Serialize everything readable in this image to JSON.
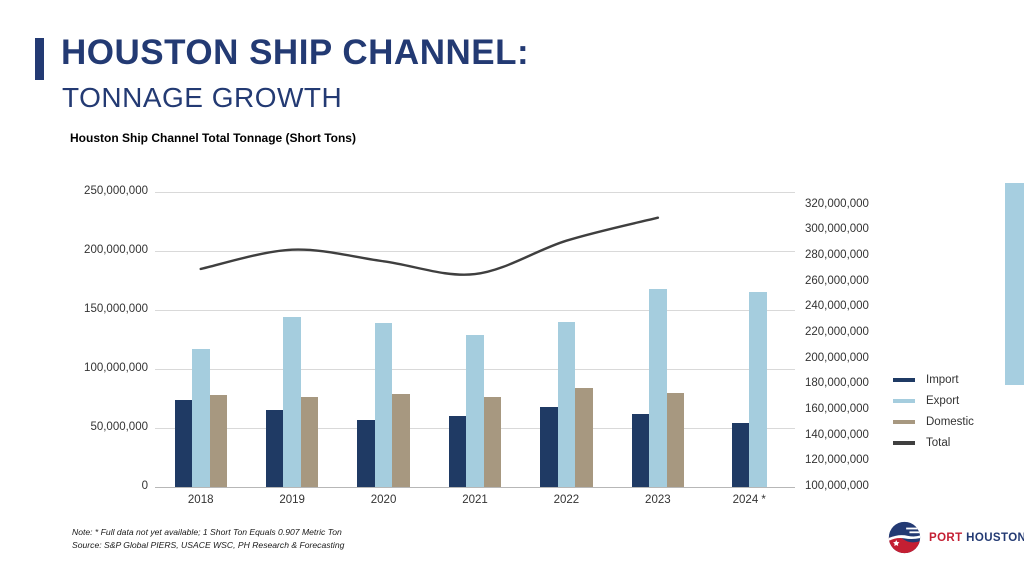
{
  "slide": {
    "title": "HOUSTON SHIP CHANNEL:",
    "subtitle": "TONNAGE GROWTH",
    "note_line1": "Note:  * Full data not yet available; 1 Short Ton Equals 0.907 Metric Ton",
    "note_line2": "Source:  S&P Global PIERS, USACE WSC, PH Research & Forecasting",
    "logo": {
      "word1": "PORT",
      "word2": "HOUSTON",
      "reg": "®"
    },
    "accent_color": "#233a73",
    "decor_color": "#a6cee0"
  },
  "chart_data": {
    "type": "bar",
    "subtype": "grouped bars with smoothed line on secondary axis",
    "title": "Houston Ship Channel Total Tonnage (Short Tons)",
    "categories": [
      "2018",
      "2019",
      "2020",
      "2021",
      "2022",
      "2023",
      "2024 *"
    ],
    "series": [
      {
        "name": "Import",
        "type": "bar",
        "axis": "left",
        "color": "#1f3a64",
        "values": [
          74000000,
          65000000,
          57000000,
          60000000,
          68000000,
          62000000,
          54000000
        ]
      },
      {
        "name": "Export",
        "type": "bar",
        "axis": "left",
        "color": "#a5cdde",
        "values": [
          117000000,
          144000000,
          139000000,
          129000000,
          140000000,
          168000000,
          165000000
        ]
      },
      {
        "name": "Domestic",
        "type": "bar",
        "axis": "left",
        "color": "#a79880",
        "values": [
          78000000,
          76000000,
          79000000,
          76000000,
          84000000,
          80000000,
          null
        ]
      },
      {
        "name": "Total",
        "type": "line",
        "axis": "right",
        "color": "#3f3f3f",
        "values": [
          270000000,
          285000000,
          276000000,
          266000000,
          292000000,
          310000000,
          null
        ]
      }
    ],
    "left_axis": {
      "min": 0,
      "max": 250000000,
      "ticks": [
        0,
        50000000,
        100000000,
        150000000,
        200000000,
        250000000
      ]
    },
    "right_axis": {
      "min": 100000000,
      "max": 330000000,
      "ticks": [
        100000000,
        120000000,
        140000000,
        160000000,
        180000000,
        200000000,
        220000000,
        240000000,
        260000000,
        280000000,
        300000000,
        320000000
      ]
    },
    "legend_position": "right",
    "grid": "horizontal"
  }
}
